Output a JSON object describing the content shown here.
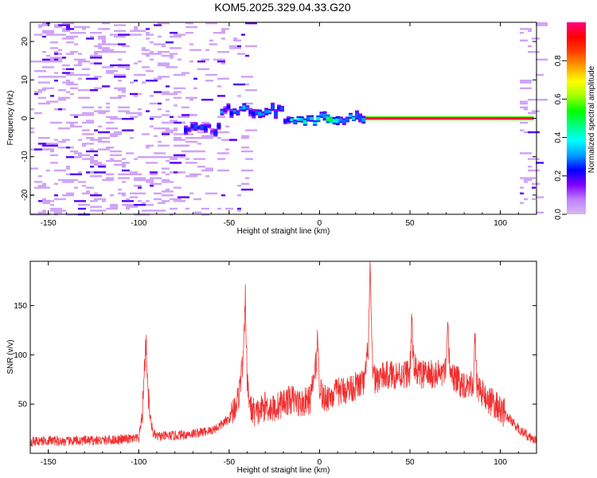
{
  "title": "KOM5.2025.329.04.33.G20",
  "chart_data": [
    {
      "type": "heatmap",
      "xlabel": "Height of straight line (km)",
      "ylabel": "Frequency (Hz)",
      "xlim": [
        -160,
        120
      ],
      "ylim": [
        -25,
        25
      ],
      "xticks": [
        -150,
        -100,
        -50,
        0,
        50,
        100
      ],
      "yticks": [
        -20,
        -10,
        0,
        10,
        20
      ],
      "colorbar": {
        "label": "Normalized spectral amplitude",
        "ticks": [
          0.0,
          0.2,
          0.4,
          0.6,
          0.8
        ],
        "range": [
          0,
          1
        ],
        "placement": "right",
        "colormap": [
          "#d8b8f0",
          "#c080ff",
          "#8000ff",
          "#0000ff",
          "#00a0ff",
          "#00ffff",
          "#00ff80",
          "#00ff00",
          "#a0ff00",
          "#ffff00",
          "#ffa000",
          "#ff4000",
          "#ff0000",
          "#ff0080"
        ]
      },
      "features": [
        {
          "x_range": [
            25,
            118
          ],
          "freq": 0,
          "amplitude": 0.95
        },
        {
          "x_range": [
            0,
            25
          ],
          "freq": 0,
          "amplitude": 0.5
        },
        {
          "x_range": [
            -20,
            0
          ],
          "freq": -1,
          "amplitude": 0.4
        },
        {
          "x_range": [
            -55,
            -20
          ],
          "freq": 2,
          "amplitude": 0.3
        },
        {
          "x_range": [
            -75,
            -55
          ],
          "freq": -3,
          "amplitude": 0.25
        }
      ],
      "grid": false
    },
    {
      "type": "line",
      "xlabel": "Height of straight line (km)",
      "ylabel": "SNR (v/v)",
      "xlim": [
        -160,
        120
      ],
      "ylim": [
        0,
        195
      ],
      "xticks": [
        -150,
        -100,
        -50,
        0,
        50,
        100
      ],
      "yticks": [
        50,
        100,
        150
      ],
      "line_color": "#f03030",
      "series": [
        {
          "x": [
            -160,
            -150,
            -140,
            -130,
            -120,
            -110,
            -100,
            -98,
            -97,
            -96,
            -95,
            -94,
            -92,
            -90,
            -80,
            -70,
            -60,
            -55,
            -50,
            -45,
            -42,
            -41,
            -40,
            -38,
            -35,
            -30,
            -25,
            -20,
            -15,
            -10,
            -5,
            -2,
            -1,
            0,
            2,
            5,
            10,
            15,
            20,
            25,
            27,
            28,
            29,
            30,
            35,
            40,
            45,
            50,
            51,
            52,
            55,
            60,
            65,
            70,
            71,
            72,
            75,
            80,
            85,
            86,
            87,
            90,
            95,
            100,
            105,
            110,
            115,
            120
          ],
          "y": [
            12,
            13,
            12,
            13,
            13,
            14,
            15,
            40,
            80,
            115,
            70,
            40,
            20,
            17,
            18,
            20,
            23,
            28,
            35,
            55,
            100,
            160,
            70,
            45,
            40,
            48,
            45,
            52,
            55,
            50,
            55,
            90,
            118,
            70,
            55,
            58,
            62,
            65,
            68,
            72,
            110,
            190,
            100,
            75,
            78,
            80,
            80,
            82,
            132,
            90,
            80,
            80,
            80,
            82,
            128,
            85,
            75,
            70,
            72,
            115,
            70,
            60,
            52,
            45,
            35,
            25,
            18,
            12
          ]
        }
      ],
      "grid": false
    }
  ]
}
